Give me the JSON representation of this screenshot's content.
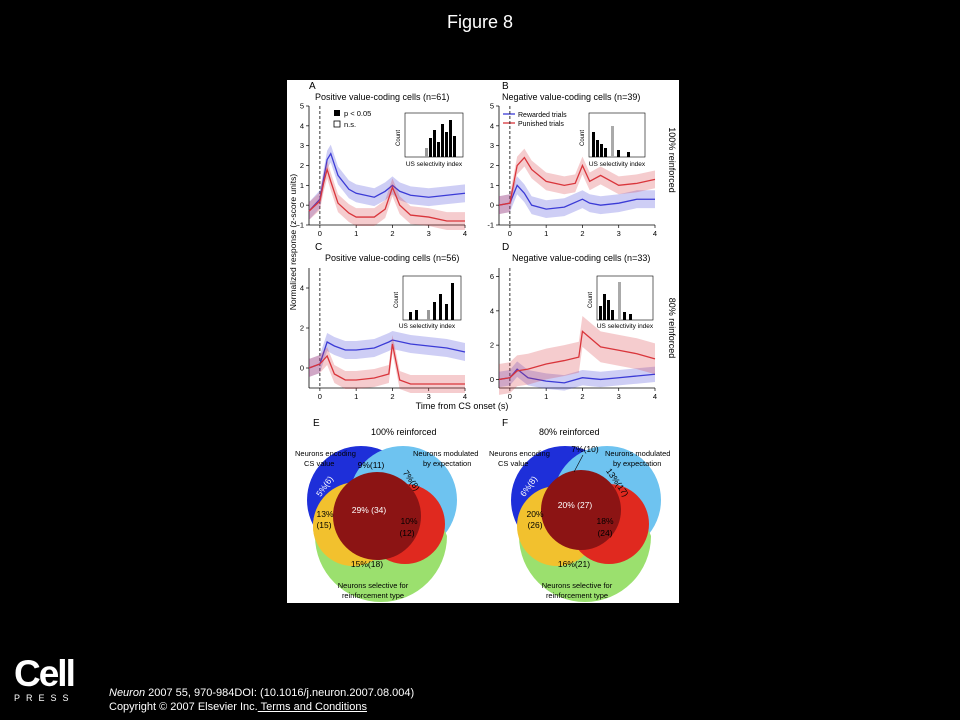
{
  "page": {
    "title": "Figure 8"
  },
  "figure": {
    "panels": {
      "A": {
        "letter": "A",
        "title": "Positive value-coding cells (n=61)"
      },
      "B": {
        "letter": "B",
        "title": "Negative value-coding cells (n=39)"
      },
      "C": {
        "letter": "C",
        "title": "Positive value-coding cells (n=56)"
      },
      "D": {
        "letter": "D",
        "title": "Negative value-coding cells (n=33)"
      },
      "E": {
        "letter": "E",
        "title": "100% reinforced"
      },
      "F": {
        "letter": "F",
        "title": "80% reinforced"
      }
    },
    "y_axis_label": "Normalized response (z-score units)",
    "x_axis_label": "Time from CS onset (s)",
    "row_labels": [
      "100% reinforced",
      "80% reinforced"
    ],
    "legend_sig": [
      "p < 0.05",
      "n.s."
    ],
    "legend_trials": [
      "Rewarded trials",
      "Punished trials"
    ],
    "inset": {
      "xlabel": "US selectivity index",
      "ylabel": "Count"
    },
    "colors": {
      "rewarded": "#3b3bd6",
      "punished": "#d9353b",
      "venn_blue": "#1e2fd9",
      "venn_cyan": "#6ec3f0",
      "venn_yellow": "#f2c12e",
      "venn_green": "#9be06e",
      "venn_red": "#e0291f",
      "venn_dark": "#8c1414"
    },
    "venn_labels": {
      "cs_value": [
        "Neurons encoding",
        "CS value"
      ],
      "expectation": [
        "Neurons modulated",
        "by expectation"
      ],
      "reinforcement": [
        "Neurons selective for",
        "reinforcement type"
      ]
    },
    "venn_E": {
      "blue": "5%(6)",
      "top": "9%(11)",
      "cyan": "7%(8)",
      "yellow": [
        "13%",
        "(15)"
      ],
      "center": "29% (34)",
      "red": [
        "10%",
        "(12)"
      ],
      "green": "15%(18)"
    },
    "venn_F": {
      "blue": "6%(8)",
      "top": "7%(10)",
      "cyan": "13%(17)",
      "yellow": [
        "20%",
        "(26)"
      ],
      "center": "20% (27)",
      "red": [
        "18%",
        "(24)"
      ],
      "green": "16%(21)"
    }
  },
  "chart_data": [
    {
      "type": "line",
      "panel": "A",
      "title": "Positive value-coding cells (n=61)",
      "xlabel": "Time from CS onset (s)",
      "ylabel": "Normalized response (z-score units)",
      "xlim": [
        -0.3,
        4
      ],
      "ylim": [
        -1,
        5
      ],
      "series": [
        {
          "name": "Rewarded trials",
          "x": [
            -0.3,
            0,
            0.1,
            0.2,
            0.3,
            0.5,
            0.8,
            1.0,
            1.5,
            1.8,
            2.0,
            2.2,
            2.5,
            3.0,
            3.5,
            4.0
          ],
          "y": [
            -0.3,
            0.3,
            1.3,
            2.3,
            2.6,
            1.5,
            0.8,
            0.6,
            0.4,
            0.7,
            1.0,
            0.7,
            0.5,
            0.4,
            0.5,
            0.6
          ]
        },
        {
          "name": "Punished trials",
          "x": [
            -0.3,
            0,
            0.1,
            0.2,
            0.3,
            0.5,
            0.8,
            1.0,
            1.5,
            1.8,
            2.0,
            2.2,
            2.5,
            3.0,
            3.5,
            4.0
          ],
          "y": [
            -0.3,
            0.2,
            1.1,
            1.8,
            1.2,
            0.1,
            -0.4,
            -0.6,
            -0.6,
            -0.2,
            0.9,
            0.0,
            -0.5,
            -0.6,
            -0.8,
            -0.8
          ]
        }
      ]
    },
    {
      "type": "line",
      "panel": "B",
      "title": "Negative value-coding cells (n=39)",
      "xlim": [
        -0.3,
        4
      ],
      "ylim": [
        -1,
        5
      ],
      "series": [
        {
          "name": "Rewarded trials",
          "x": [
            -0.3,
            0,
            0.2,
            0.4,
            0.6,
            1.0,
            1.5,
            2.0,
            2.2,
            2.5,
            3.0,
            3.5,
            4.0
          ],
          "y": [
            0,
            0.1,
            1.0,
            0.6,
            0.0,
            -0.2,
            -0.1,
            0.3,
            0.1,
            0.0,
            0.1,
            0.3,
            0.3
          ]
        },
        {
          "name": "Punished trials",
          "x": [
            -0.3,
            0,
            0.2,
            0.4,
            0.6,
            1.0,
            1.5,
            1.8,
            2.0,
            2.2,
            2.5,
            3.0,
            3.5,
            4.0
          ],
          "y": [
            0,
            0.1,
            2.0,
            2.4,
            1.8,
            1.2,
            1.0,
            1.1,
            2.0,
            1.2,
            1.5,
            1.0,
            1.1,
            1.3
          ]
        }
      ]
    },
    {
      "type": "line",
      "panel": "C",
      "title": "Positive value-coding cells (n=56)",
      "xlim": [
        -0.3,
        4
      ],
      "ylim": [
        -1,
        5
      ],
      "series": [
        {
          "name": "Rewarded trials",
          "x": [
            -0.3,
            0,
            0.2,
            0.4,
            0.7,
            1.0,
            1.5,
            1.9,
            2.0,
            2.5,
            3.0,
            3.5,
            4.0
          ],
          "y": [
            0,
            0.2,
            1.3,
            1.1,
            0.9,
            0.9,
            1.0,
            1.3,
            1.4,
            1.2,
            1.1,
            1.0,
            0.8
          ]
        },
        {
          "name": "Punished trials",
          "x": [
            -0.3,
            0,
            0.2,
            0.4,
            0.7,
            1.0,
            1.5,
            1.9,
            2.0,
            2.2,
            2.5,
            3.0,
            3.5,
            4.0
          ],
          "y": [
            0,
            0.2,
            0.6,
            -0.3,
            -0.6,
            -0.6,
            -0.5,
            -0.3,
            1.2,
            -0.6,
            -0.8,
            -0.8,
            -0.8,
            -0.8
          ]
        }
      ]
    },
    {
      "type": "line",
      "panel": "D",
      "title": "Negative value-coding cells (n=33)",
      "xlim": [
        -0.3,
        4
      ],
      "ylim": [
        -0.5,
        6.5
      ],
      "series": [
        {
          "name": "Rewarded trials",
          "x": [
            -0.3,
            0,
            0.2,
            0.5,
            1.0,
            1.5,
            2.0,
            2.5,
            3.0,
            3.5,
            4.0
          ],
          "y": [
            0,
            0.1,
            0.6,
            0.1,
            -0.1,
            -0.2,
            0.1,
            0.0,
            0.1,
            0.2,
            0.3
          ]
        },
        {
          "name": "Punished trials",
          "x": [
            -0.3,
            0,
            0.2,
            0.5,
            1.0,
            1.5,
            1.9,
            2.0,
            2.5,
            3.0,
            3.5,
            4.0
          ],
          "y": [
            0,
            0.1,
            0.5,
            0.6,
            0.9,
            1.1,
            1.3,
            2.8,
            1.9,
            1.7,
            1.5,
            1.2
          ]
        }
      ]
    }
  ],
  "citation": {
    "journal": "Neuron",
    "ref": " 2007 55, 970-984DOI: (10.1016/j.neuron.2007.08.004)",
    "copyright": "Copyright © 2007 Elsevier Inc.",
    "link": " Terms and Conditions"
  },
  "logo": {
    "word": "Cell",
    "sub": "PRESS"
  }
}
